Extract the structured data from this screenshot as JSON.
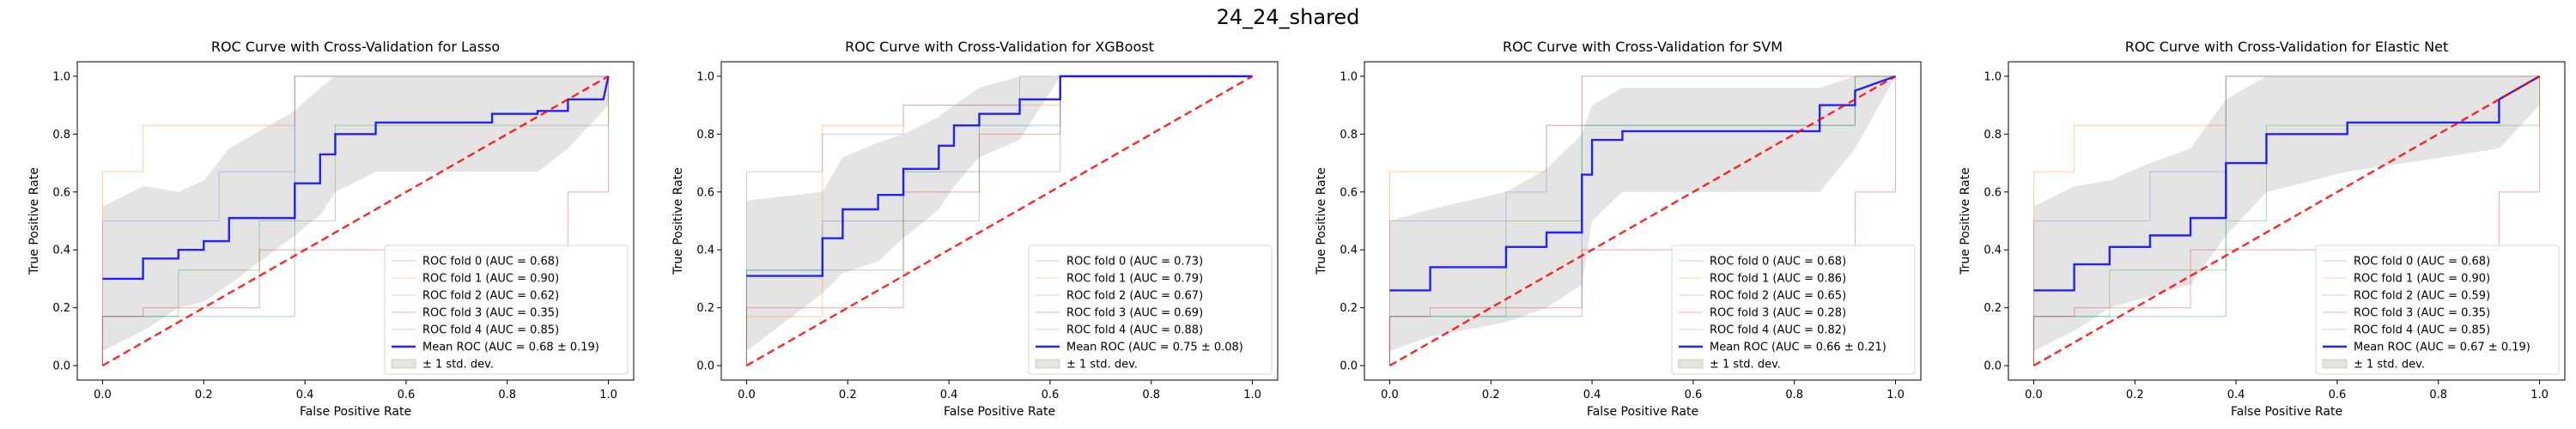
{
  "suptitle": "24_24_shared",
  "colors": {
    "folds": [
      "#1f77b4",
      "#ff7f0e",
      "#2ca02c",
      "#d62728",
      "#9467bd"
    ],
    "mean": "#0000ff",
    "chance": "#ff0000",
    "band": "#bfbfbf"
  },
  "chart_data": [
    {
      "type": "line",
      "title": "ROC Curve with Cross-Validation for Lasso",
      "xlabel": "False Positive Rate",
      "ylabel": "True Positive Rate",
      "xlim": [
        -0.05,
        1.05
      ],
      "ylim": [
        -0.05,
        1.05
      ],
      "xticks": [
        "0.0",
        "0.2",
        "0.4",
        "0.6",
        "0.8",
        "1.0"
      ],
      "yticks": [
        "0.0",
        "0.2",
        "0.4",
        "0.6",
        "0.8",
        "1.0"
      ],
      "legend_position": "lower right",
      "series": [
        {
          "name": "ROC fold 0 (AUC = 0.68)",
          "x": [
            0,
            0,
            0.38,
            0.38,
            1,
            1
          ],
          "y": [
            0,
            0.17,
            0.17,
            1,
            1,
            1
          ]
        },
        {
          "name": "ROC fold 1 (AUC = 0.90)",
          "x": [
            0,
            0,
            0.08,
            0.08,
            0.38,
            0.38,
            1
          ],
          "y": [
            0,
            0.67,
            0.67,
            0.83,
            0.83,
            1,
            1
          ]
        },
        {
          "name": "ROC fold 2 (AUC = 0.62)",
          "x": [
            0,
            0,
            0.15,
            0.15,
            0.31,
            0.31,
            0.46,
            0.46,
            1,
            1
          ],
          "y": [
            0,
            0.17,
            0.17,
            0.33,
            0.33,
            0.5,
            0.5,
            0.83,
            0.83,
            1
          ]
        },
        {
          "name": "ROC fold 3 (AUC = 0.35)",
          "x": [
            0,
            0,
            0.08,
            0.08,
            0.31,
            0.31,
            0.92,
            0.92,
            1,
            1
          ],
          "y": [
            0,
            0.17,
            0.17,
            0.2,
            0.2,
            0.4,
            0.4,
            0.6,
            0.6,
            1
          ]
        },
        {
          "name": "ROC fold 4 (AUC = 0.85)",
          "x": [
            0,
            0,
            0.23,
            0.23,
            0.38,
            0.38,
            1
          ],
          "y": [
            0,
            0.5,
            0.5,
            0.67,
            0.67,
            1,
            1
          ]
        },
        {
          "name": "Mean ROC (AUC = 0.68 ± 0.19)",
          "x": [
            0,
            0.08,
            0.08,
            0.15,
            0.15,
            0.2,
            0.2,
            0.25,
            0.25,
            0.38,
            0.38,
            0.43,
            0.43,
            0.46,
            0.46,
            0.54,
            0.54,
            0.77,
            0.77,
            0.86,
            0.86,
            0.92,
            0.92,
            0.99,
            1
          ],
          "y": [
            0.3,
            0.3,
            0.37,
            0.37,
            0.4,
            0.4,
            0.43,
            0.43,
            0.51,
            0.51,
            0.63,
            0.63,
            0.73,
            0.73,
            0.8,
            0.8,
            0.84,
            0.84,
            0.87,
            0.87,
            0.88,
            0.88,
            0.92,
            0.92,
            1.0
          ]
        }
      ],
      "std_band": {
        "name": "± 1 std. dev.",
        "x": [
          0,
          0.08,
          0.15,
          0.2,
          0.25,
          0.38,
          0.43,
          0.46,
          0.54,
          0.77,
          0.86,
          0.92,
          1
        ],
        "lower": [
          0.05,
          0.12,
          0.2,
          0.22,
          0.28,
          0.45,
          0.52,
          0.6,
          0.67,
          0.67,
          0.67,
          0.75,
          0.9
        ],
        "upper": [
          0.55,
          0.62,
          0.6,
          0.64,
          0.75,
          0.88,
          0.96,
          1,
          1,
          1,
          1,
          1,
          1
        ]
      },
      "chance_line": {
        "x": [
          0,
          1
        ],
        "y": [
          0,
          1
        ]
      }
    },
    {
      "type": "line",
      "title": "ROC Curve with Cross-Validation for XGBoost",
      "xlabel": "False Positive Rate",
      "ylabel": "True Positive Rate",
      "xlim": [
        -0.05,
        1.05
      ],
      "ylim": [
        -0.05,
        1.05
      ],
      "xticks": [
        "0.0",
        "0.2",
        "0.4",
        "0.6",
        "0.8",
        "1.0"
      ],
      "yticks": [
        "0.0",
        "0.2",
        "0.4",
        "0.6",
        "0.8",
        "1.0"
      ],
      "legend_position": "lower right",
      "series": [
        {
          "name": "ROC fold 0 (AUC = 0.73)",
          "x": [
            0,
            0,
            0.15,
            0.15,
            0.31,
            0.31,
            0.46,
            0.46,
            0.62,
            0.62,
            1
          ],
          "y": [
            0,
            0.33,
            0.33,
            0.5,
            0.5,
            0.67,
            0.67,
            0.83,
            0.83,
            1,
            1
          ]
        },
        {
          "name": "ROC fold 1 (AUC = 0.79)",
          "x": [
            0,
            0,
            0.15,
            0.15,
            0.31,
            0.31,
            0.62,
            0.62,
            1
          ],
          "y": [
            0,
            0.17,
            0.17,
            0.83,
            0.83,
            0.9,
            0.9,
            1,
            1
          ]
        },
        {
          "name": "ROC fold 2 (AUC = 0.67)",
          "x": [
            0,
            0,
            0.31,
            0.31,
            0.46,
            0.46,
            0.62,
            0.62,
            1
          ],
          "y": [
            0,
            0.33,
            0.33,
            0.5,
            0.5,
            0.67,
            0.67,
            1,
            1
          ]
        },
        {
          "name": "ROC fold 3 (AUC = 0.69)",
          "x": [
            0,
            0,
            0.31,
            0.31,
            0.46,
            0.46,
            0.62,
            0.62,
            1
          ],
          "y": [
            0,
            0.2,
            0.2,
            0.6,
            0.6,
            0.8,
            0.8,
            1,
            1
          ]
        },
        {
          "name": "ROC fold 4 (AUC = 0.88)",
          "x": [
            0,
            0,
            0.15,
            0.15,
            0.31,
            0.31,
            0.54,
            0.54,
            1
          ],
          "y": [
            0,
            0.67,
            0.67,
            0.8,
            0.8,
            0.9,
            0.9,
            1,
            1
          ]
        },
        {
          "name": "Mean ROC (AUC = 0.75 ± 0.08)",
          "x": [
            0,
            0.15,
            0.15,
            0.19,
            0.19,
            0.26,
            0.26,
            0.31,
            0.31,
            0.38,
            0.38,
            0.41,
            0.41,
            0.46,
            0.46,
            0.54,
            0.54,
            0.62,
            0.62,
            1
          ],
          "y": [
            0.31,
            0.31,
            0.44,
            0.44,
            0.54,
            0.54,
            0.59,
            0.59,
            0.68,
            0.68,
            0.76,
            0.76,
            0.83,
            0.83,
            0.87,
            0.87,
            0.92,
            0.92,
            1.0,
            1.0
          ]
        }
      ],
      "std_band": {
        "name": "± 1 std. dev.",
        "x": [
          0,
          0.15,
          0.19,
          0.26,
          0.31,
          0.38,
          0.41,
          0.46,
          0.54,
          0.62,
          1
        ],
        "lower": [
          0.05,
          0.25,
          0.32,
          0.36,
          0.44,
          0.54,
          0.62,
          0.72,
          0.78,
          1,
          1
        ],
        "upper": [
          0.57,
          0.6,
          0.72,
          0.77,
          0.8,
          0.86,
          0.9,
          0.96,
          1,
          1,
          1
        ]
      },
      "chance_line": {
        "x": [
          0,
          1
        ],
        "y": [
          0,
          1
        ]
      }
    },
    {
      "type": "line",
      "title": "ROC Curve with Cross-Validation for SVM",
      "xlabel": "False Positive Rate",
      "ylabel": "True Positive Rate",
      "xlim": [
        -0.05,
        1.05
      ],
      "ylim": [
        -0.05,
        1.05
      ],
      "xticks": [
        "0.0",
        "0.2",
        "0.4",
        "0.6",
        "0.8",
        "1.0"
      ],
      "yticks": [
        "0.0",
        "0.2",
        "0.4",
        "0.6",
        "0.8",
        "1.0"
      ],
      "legend_position": "lower right",
      "series": [
        {
          "name": "ROC fold 0 (AUC = 0.68)",
          "x": [
            0,
            0,
            0.38,
            0.38,
            0.92,
            0.92,
            1
          ],
          "y": [
            0,
            0.17,
            0.17,
            0.83,
            0.83,
            1,
            1
          ]
        },
        {
          "name": "ROC fold 1 (AUC = 0.86)",
          "x": [
            0,
            0,
            0.31,
            0.31,
            0.38,
            0.38,
            1
          ],
          "y": [
            0,
            0.67,
            0.67,
            0.83,
            0.83,
            1,
            1
          ]
        },
        {
          "name": "ROC fold 2 (AUC = 0.65)",
          "x": [
            0,
            0,
            0.23,
            0.23,
            0.38,
            0.38,
            0.92,
            0.92,
            1
          ],
          "y": [
            0,
            0.17,
            0.17,
            0.5,
            0.5,
            0.83,
            0.83,
            1,
            1
          ]
        },
        {
          "name": "ROC fold 3 (AUC = 0.28)",
          "x": [
            0,
            0,
            0.08,
            0.08,
            0.38,
            0.38,
            0.92,
            0.92,
            1,
            1
          ],
          "y": [
            0,
            0.17,
            0.17,
            0.2,
            0.2,
            0.4,
            0.4,
            0.6,
            0.6,
            1
          ]
        },
        {
          "name": "ROC fold 4 (AUC = 0.82)",
          "x": [
            0,
            0,
            0.23,
            0.23,
            0.31,
            0.31,
            0.38,
            0.38,
            1
          ],
          "y": [
            0,
            0.5,
            0.5,
            0.6,
            0.6,
            0.83,
            0.83,
            1,
            1
          ]
        },
        {
          "name": "Mean ROC (AUC = 0.66 ± 0.21)",
          "x": [
            0,
            0.08,
            0.08,
            0.23,
            0.23,
            0.31,
            0.31,
            0.38,
            0.38,
            0.4,
            0.4,
            0.46,
            0.46,
            0.85,
            0.85,
            0.92,
            0.92,
            1
          ],
          "y": [
            0.26,
            0.26,
            0.34,
            0.34,
            0.41,
            0.41,
            0.46,
            0.46,
            0.66,
            0.66,
            0.78,
            0.78,
            0.81,
            0.81,
            0.9,
            0.9,
            0.95,
            1.0
          ]
        }
      ],
      "std_band": {
        "name": "± 1 std. dev.",
        "x": [
          0,
          0.08,
          0.23,
          0.31,
          0.38,
          0.4,
          0.46,
          0.85,
          0.92,
          1
        ],
        "lower": [
          0.05,
          0.1,
          0.15,
          0.2,
          0.28,
          0.5,
          0.6,
          0.6,
          0.75,
          1
        ],
        "upper": [
          0.5,
          0.54,
          0.6,
          0.68,
          0.8,
          0.9,
          0.96,
          0.96,
          1,
          1
        ]
      },
      "chance_line": {
        "x": [
          0,
          1
        ],
        "y": [
          0,
          1
        ]
      }
    },
    {
      "type": "line",
      "title": "ROC Curve with Cross-Validation for Elastic Net",
      "xlabel": "False Positive Rate",
      "ylabel": "True Positive Rate",
      "xlim": [
        -0.05,
        1.05
      ],
      "ylim": [
        -0.05,
        1.05
      ],
      "xticks": [
        "0.0",
        "0.2",
        "0.4",
        "0.6",
        "0.8",
        "1.0"
      ],
      "yticks": [
        "0.0",
        "0.2",
        "0.4",
        "0.6",
        "0.8",
        "1.0"
      ],
      "legend_position": "lower right",
      "series": [
        {
          "name": "ROC fold 0 (AUC = 0.68)",
          "x": [
            0,
            0,
            0.38,
            0.38,
            1,
            1
          ],
          "y": [
            0,
            0.17,
            0.17,
            1,
            1,
            1
          ]
        },
        {
          "name": "ROC fold 1 (AUC = 0.90)",
          "x": [
            0,
            0,
            0.08,
            0.08,
            0.38,
            0.38,
            1
          ],
          "y": [
            0,
            0.67,
            0.67,
            0.83,
            0.83,
            1,
            1
          ]
        },
        {
          "name": "ROC fold 2 (AUC = 0.59)",
          "x": [
            0,
            0,
            0.15,
            0.15,
            0.38,
            0.38,
            0.46,
            0.46,
            1,
            1
          ],
          "y": [
            0,
            0.17,
            0.17,
            0.33,
            0.33,
            0.5,
            0.5,
            0.83,
            0.83,
            1
          ]
        },
        {
          "name": "ROC fold 3 (AUC = 0.35)",
          "x": [
            0,
            0,
            0.08,
            0.08,
            0.31,
            0.31,
            0.92,
            0.92,
            1,
            1
          ],
          "y": [
            0,
            0.17,
            0.17,
            0.2,
            0.2,
            0.4,
            0.4,
            0.6,
            0.6,
            1
          ]
        },
        {
          "name": "ROC fold 4 (AUC = 0.85)",
          "x": [
            0,
            0,
            0.23,
            0.23,
            0.38,
            0.38,
            1
          ],
          "y": [
            0,
            0.5,
            0.5,
            0.67,
            0.67,
            1,
            1
          ]
        },
        {
          "name": "Mean ROC (AUC = 0.67 ± 0.19)",
          "x": [
            0,
            0.08,
            0.08,
            0.15,
            0.15,
            0.23,
            0.23,
            0.31,
            0.31,
            0.38,
            0.38,
            0.46,
            0.46,
            0.62,
            0.62,
            0.92,
            0.92,
            1
          ],
          "y": [
            0.26,
            0.26,
            0.35,
            0.35,
            0.41,
            0.41,
            0.45,
            0.45,
            0.51,
            0.51,
            0.7,
            0.7,
            0.8,
            0.8,
            0.84,
            0.84,
            0.92,
            1.0
          ]
        }
      ],
      "std_band": {
        "name": "± 1 std. dev.",
        "x": [
          0,
          0.08,
          0.15,
          0.23,
          0.31,
          0.38,
          0.46,
          0.62,
          0.92,
          1
        ],
        "lower": [
          0.05,
          0.12,
          0.2,
          0.24,
          0.28,
          0.45,
          0.6,
          0.67,
          0.75,
          0.9
        ],
        "upper": [
          0.55,
          0.62,
          0.64,
          0.7,
          0.75,
          0.92,
          1,
          1,
          1,
          1
        ]
      },
      "chance_line": {
        "x": [
          0,
          1
        ],
        "y": [
          0,
          1
        ]
      }
    }
  ]
}
